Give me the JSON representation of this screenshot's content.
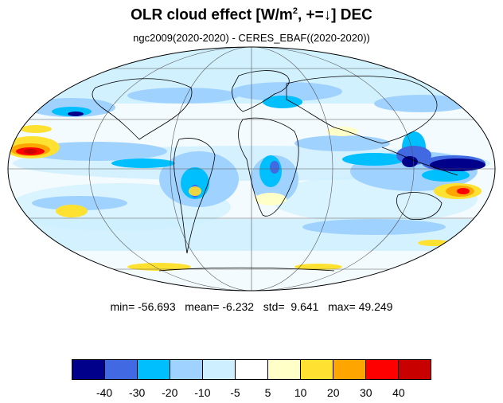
{
  "title": {
    "text": "OLR cloud effect [W/m",
    "sup": "2",
    "suffix": ", +=↓]  DEC"
  },
  "subtitle": "ngc2009(2020-2020) - CERES_EBAF((2020-2020))",
  "stats": {
    "min_label": "min=",
    "min": "-56.693",
    "mean_label": "mean=",
    "mean": "-6.232",
    "std_label": "std=",
    "std": "9.641",
    "max_label": "max=",
    "max": "49.249"
  },
  "colorbar": {
    "colors": [
      "#00008b",
      "#4169e1",
      "#00bfff",
      "#a0d2ff",
      "#cdefff",
      "#ffffff",
      "#ffffc8",
      "#ffe132",
      "#ffa500",
      "#ff0000",
      "#c80000"
    ],
    "ticks": [
      "-40",
      "-30",
      "-20",
      "-10",
      "-5",
      "5",
      "10",
      "20",
      "30",
      "40"
    ]
  },
  "map": {
    "projection": "Mollweide",
    "center_longitude": 0
  }
}
